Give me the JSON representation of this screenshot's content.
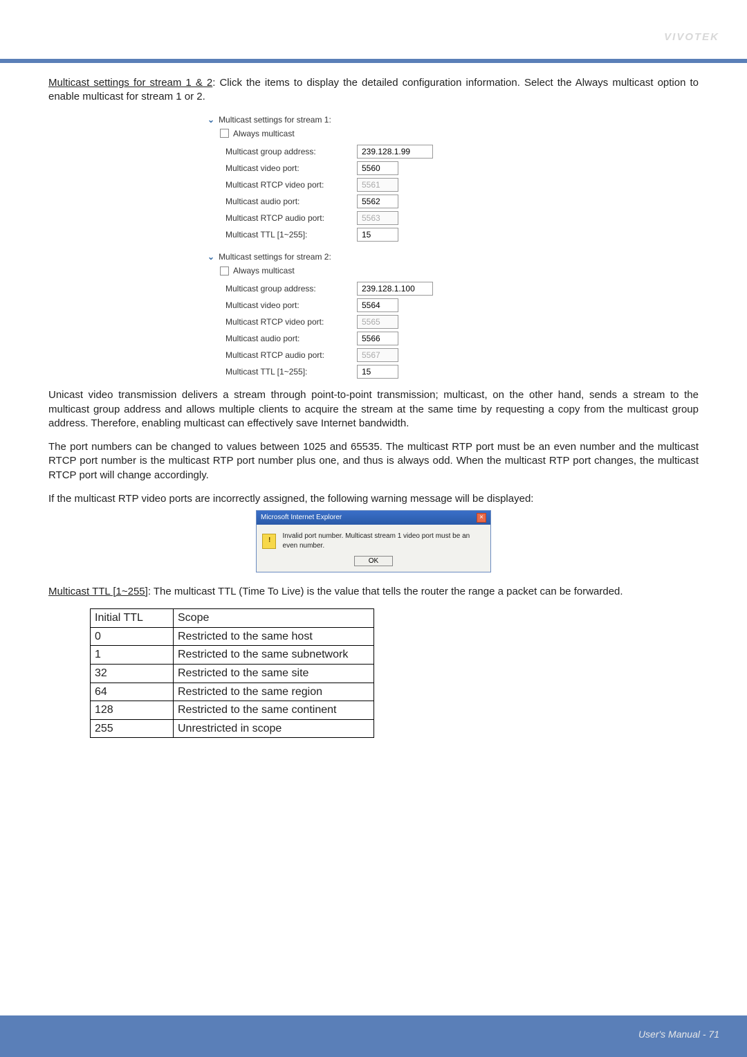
{
  "brand": {
    "name": "VIVOTEK",
    "color": "#d8d8d8"
  },
  "intro": {
    "heading": "Multicast settings for stream 1 & 2",
    "text": ": Click the items to display the detailed configuration information. Select the Always multicast option to enable multicast for stream 1 or 2."
  },
  "streams": [
    {
      "title": "Multicast settings for stream 1:",
      "always": "Always multicast",
      "rows": [
        {
          "label": "Multicast group address:",
          "value": "239.128.1.99",
          "disabled": false,
          "narrow": false
        },
        {
          "label": "Multicast video port:",
          "value": "5560",
          "disabled": false,
          "narrow": true
        },
        {
          "label": "Multicast RTCP video port:",
          "value": "5561",
          "disabled": true,
          "narrow": true
        },
        {
          "label": "Multicast audio port:",
          "value": "5562",
          "disabled": false,
          "narrow": true
        },
        {
          "label": "Multicast RTCP audio port:",
          "value": "5563",
          "disabled": true,
          "narrow": true
        },
        {
          "label": "Multicast TTL [1~255]:",
          "value": "15",
          "disabled": false,
          "narrow": true
        }
      ]
    },
    {
      "title": "Multicast settings for stream 2:",
      "always": "Always multicast",
      "rows": [
        {
          "label": "Multicast group address:",
          "value": "239.128.1.100",
          "disabled": false,
          "narrow": false
        },
        {
          "label": "Multicast video port:",
          "value": "5564",
          "disabled": false,
          "narrow": true
        },
        {
          "label": "Multicast RTCP video port:",
          "value": "5565",
          "disabled": true,
          "narrow": true
        },
        {
          "label": "Multicast audio port:",
          "value": "5566",
          "disabled": false,
          "narrow": true
        },
        {
          "label": "Multicast RTCP audio port:",
          "value": "5567",
          "disabled": true,
          "narrow": true
        },
        {
          "label": "Multicast TTL [1~255]:",
          "value": "15",
          "disabled": false,
          "narrow": true
        }
      ]
    }
  ],
  "para1": "Unicast video transmission delivers a stream through point-to-point transmission; multicast, on the other hand, sends a stream to the multicast group address and allows multiple clients to acquire the stream at the same time by requesting a copy from the multicast group address. Therefore, enabling multicast can effectively save Internet bandwidth.",
  "para2": "The port numbers can be changed to values between 1025 and 65535. The multicast RTP port must be an even number and the multicast RTCP port number is the multicast RTP port number plus one, and thus is always odd. When the multicast RTP port changes, the multicast RTCP port will change accordingly.",
  "para3": "If the multicast RTP video ports are incorrectly assigned, the following warning message will be displayed:",
  "dialog": {
    "title": "Microsoft Internet Explorer",
    "msg": "Invalid port number. Multicast stream 1 video port must be an even number.",
    "ok": "OK"
  },
  "ttl_intro_heading": "Multicast TTL [1~255]",
  "ttl_intro_text": ": The multicast TTL (Time To Live) is the value that tells the router the range a packet can be forwarded.",
  "ttl_table": {
    "headers": [
      "Initial TTL",
      "Scope"
    ],
    "rows": [
      [
        "0",
        "Restricted to the same host"
      ],
      [
        "1",
        "Restricted to the same subnetwork"
      ],
      [
        "32",
        "Restricted to the same site"
      ],
      [
        "64",
        "Restricted to the same region"
      ],
      [
        "128",
        "Restricted to the same continent"
      ],
      [
        "255",
        "Unrestricted in scope"
      ]
    ]
  },
  "footer": {
    "text": "User's Manual - 71"
  }
}
